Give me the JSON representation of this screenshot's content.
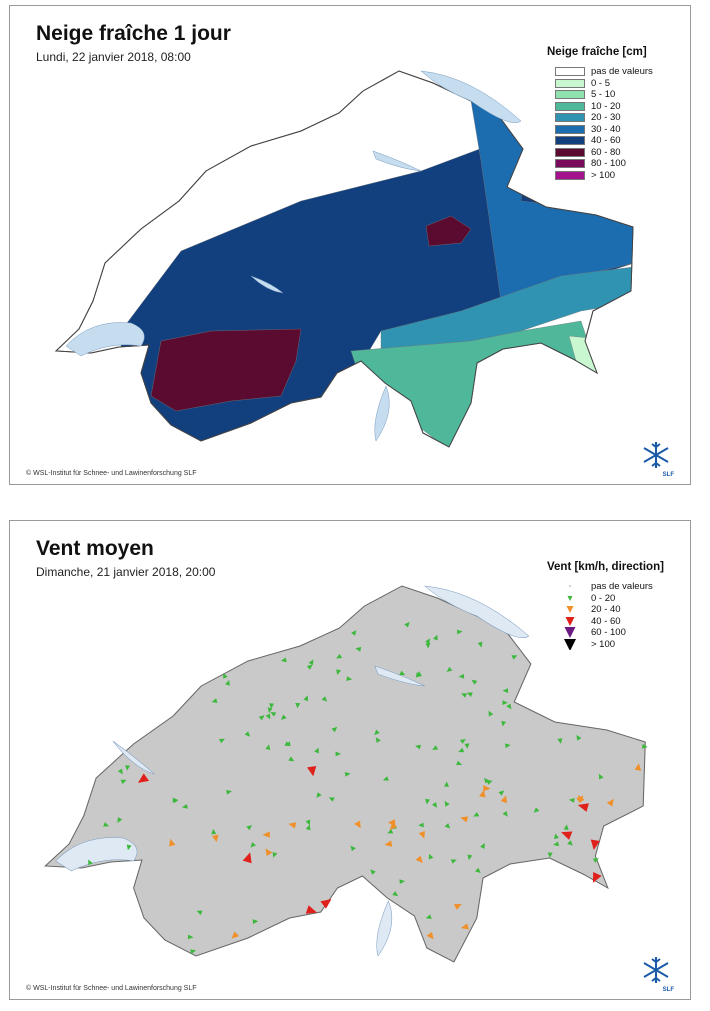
{
  "panels": [
    {
      "title": "Neige fraîche 1 jour",
      "subtitle": "Lundi, 22 janvier 2018, 08:00",
      "legend": {
        "title": "Neige fraîche [cm]",
        "items": [
          {
            "label": "pas de valeurs",
            "color": "#ffffff"
          },
          {
            "label": "0 - 5",
            "color": "#c9f7cf"
          },
          {
            "label": "5 - 10",
            "color": "#8fe2ad"
          },
          {
            "label": "10 - 20",
            "color": "#4fb89b"
          },
          {
            "label": "20 - 30",
            "color": "#2f93b1"
          },
          {
            "label": "30 - 40",
            "color": "#1b6db0"
          },
          {
            "label": "40 - 60",
            "color": "#123f7e"
          },
          {
            "label": "60 - 80",
            "color": "#5a0b2f"
          },
          {
            "label": "80 - 100",
            "color": "#7a0b5c"
          },
          {
            "label": "> 100",
            "color": "#a5128e"
          }
        ]
      },
      "copyright": "© WSL-Institut für Schnee- und Lawinenforschung SLF",
      "logo": "SLF"
    },
    {
      "title": "Vent moyen",
      "subtitle": "Dimanche, 21 janvier 2018, 20:00",
      "legend": {
        "title": "Vent [km/h, direction]",
        "items": [
          {
            "label": "pas de valeurs",
            "color": "#d0d0d0"
          },
          {
            "label": "0 - 20",
            "color": "#3cb83c"
          },
          {
            "label": "20 - 40",
            "color": "#f0902a"
          },
          {
            "label": "40 - 60",
            "color": "#e0201a"
          },
          {
            "label": "60 - 100",
            "color": "#6a1a80"
          },
          {
            "label": "> 100",
            "color": "#000000"
          }
        ]
      },
      "copyright": "© WSL-Institut für Schnee- und Lawinenforschung SLF",
      "logo": "SLF"
    }
  ]
}
